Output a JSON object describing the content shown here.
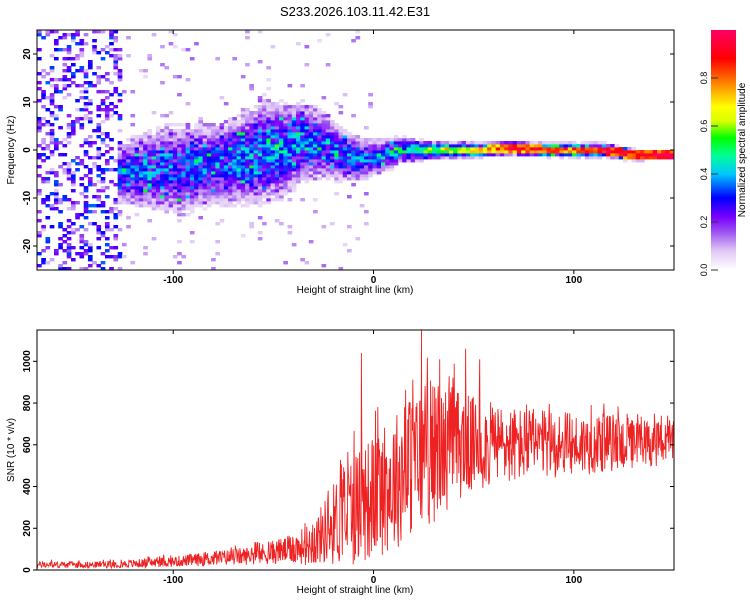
{
  "title": "S233.2026.103.11.42.E31",
  "chart_data": [
    {
      "type": "heatmap",
      "xlabel": "Height of straight line (km)",
      "ylabel": "Frequency (Hz)",
      "xlim": [
        -168,
        150
      ],
      "ylim": [
        -25,
        25
      ],
      "x_ticks": [
        -100,
        0,
        100
      ],
      "y_ticks": [
        -20,
        -10,
        0,
        10,
        20
      ],
      "x_tick_labels": [
        "-100",
        "0",
        "100"
      ],
      "y_tick_labels": [
        "-20",
        "-10",
        "0",
        "10",
        "20"
      ],
      "colorbar": {
        "label": "Normalized spectral amplitude",
        "range": [
          0,
          1
        ],
        "ticks": [
          0.0,
          0.2,
          0.4,
          0.6,
          0.8
        ],
        "tick_labels": [
          "0.0",
          "0.2",
          "0.4",
          "0.6",
          "0.8"
        ],
        "colors": [
          "#ffffff",
          "#e0c8f6",
          "#9b50f0",
          "#7a00ff",
          "#0000ff",
          "#00c8ff",
          "#00ff90",
          "#00ff00",
          "#d8ff00",
          "#ffff00",
          "#ff8000",
          "#ff0000",
          "#ff0066"
        ],
        "stops": [
          0.0,
          0.08,
          0.16,
          0.22,
          0.3,
          0.4,
          0.48,
          0.55,
          0.62,
          0.68,
          0.78,
          0.88,
          1.0
        ]
      },
      "ridge": {
        "x": [
          -125,
          -110,
          -95,
          -80,
          -65,
          -55,
          -45,
          -35,
          -25,
          -15,
          -5,
          5,
          15,
          25,
          40,
          55,
          70,
          85,
          100,
          115,
          130,
          148
        ],
        "freq": [
          -5,
          -4,
          -4,
          -3,
          -2,
          0,
          0,
          2,
          1,
          -1,
          -2,
          -1,
          0,
          0,
          0,
          0,
          0.5,
          0,
          0,
          0,
          -1,
          -1
        ],
        "spread": [
          5,
          6,
          7,
          6,
          7,
          8,
          7,
          6,
          5,
          4,
          3,
          2.5,
          2,
          1.5,
          1.2,
          1,
          1,
          1,
          1,
          1,
          0.8,
          0.6
        ],
        "intensity": [
          0.3,
          0.32,
          0.3,
          0.33,
          0.35,
          0.36,
          0.37,
          0.36,
          0.34,
          0.33,
          0.34,
          0.36,
          0.42,
          0.5,
          0.58,
          0.7,
          0.8,
          0.78,
          0.82,
          0.85,
          0.84,
          0.92
        ]
      },
      "noise_region_x": [
        -168,
        -125
      ],
      "noise_intensity": 0.25
    },
    {
      "type": "line",
      "xlabel": "Height of straight line (km)",
      "ylabel": "SNR (10 * v/v)",
      "xlim": [
        -168,
        150
      ],
      "ylim": [
        0,
        1150
      ],
      "x_ticks": [
        -100,
        0,
        100
      ],
      "y_ticks": [
        0,
        200,
        400,
        600,
        800,
        1000
      ],
      "x_tick_labels": [
        "-100",
        "0",
        "100"
      ],
      "y_tick_labels": [
        "0",
        "200",
        "400",
        "600",
        "800",
        "1000"
      ],
      "color": "#ee2222",
      "envelope": {
        "x": [
          -168,
          -140,
          -120,
          -100,
          -80,
          -60,
          -40,
          -30,
          -25,
          -20,
          -10,
          0,
          10,
          20,
          30,
          40,
          50,
          60,
          80,
          100,
          120,
          135,
          150
        ],
        "mean": [
          25,
          25,
          30,
          40,
          55,
          70,
          100,
          130,
          180,
          220,
          300,
          350,
          420,
          520,
          560,
          600,
          600,
          600,
          600,
          600,
          610,
          600,
          610
        ],
        "amp": [
          15,
          15,
          20,
          25,
          35,
          45,
          70,
          110,
          150,
          200,
          280,
          300,
          330,
          350,
          340,
          280,
          230,
          200,
          170,
          150,
          140,
          110,
          100
        ]
      },
      "spikes": [
        {
          "x": -6,
          "y": 1040
        },
        {
          "x": 24,
          "y": 1150
        },
        {
          "x": 33,
          "y": 1010
        },
        {
          "x": 53,
          "y": 1010
        },
        {
          "x": 46,
          "y": 1060
        }
      ]
    }
  ]
}
